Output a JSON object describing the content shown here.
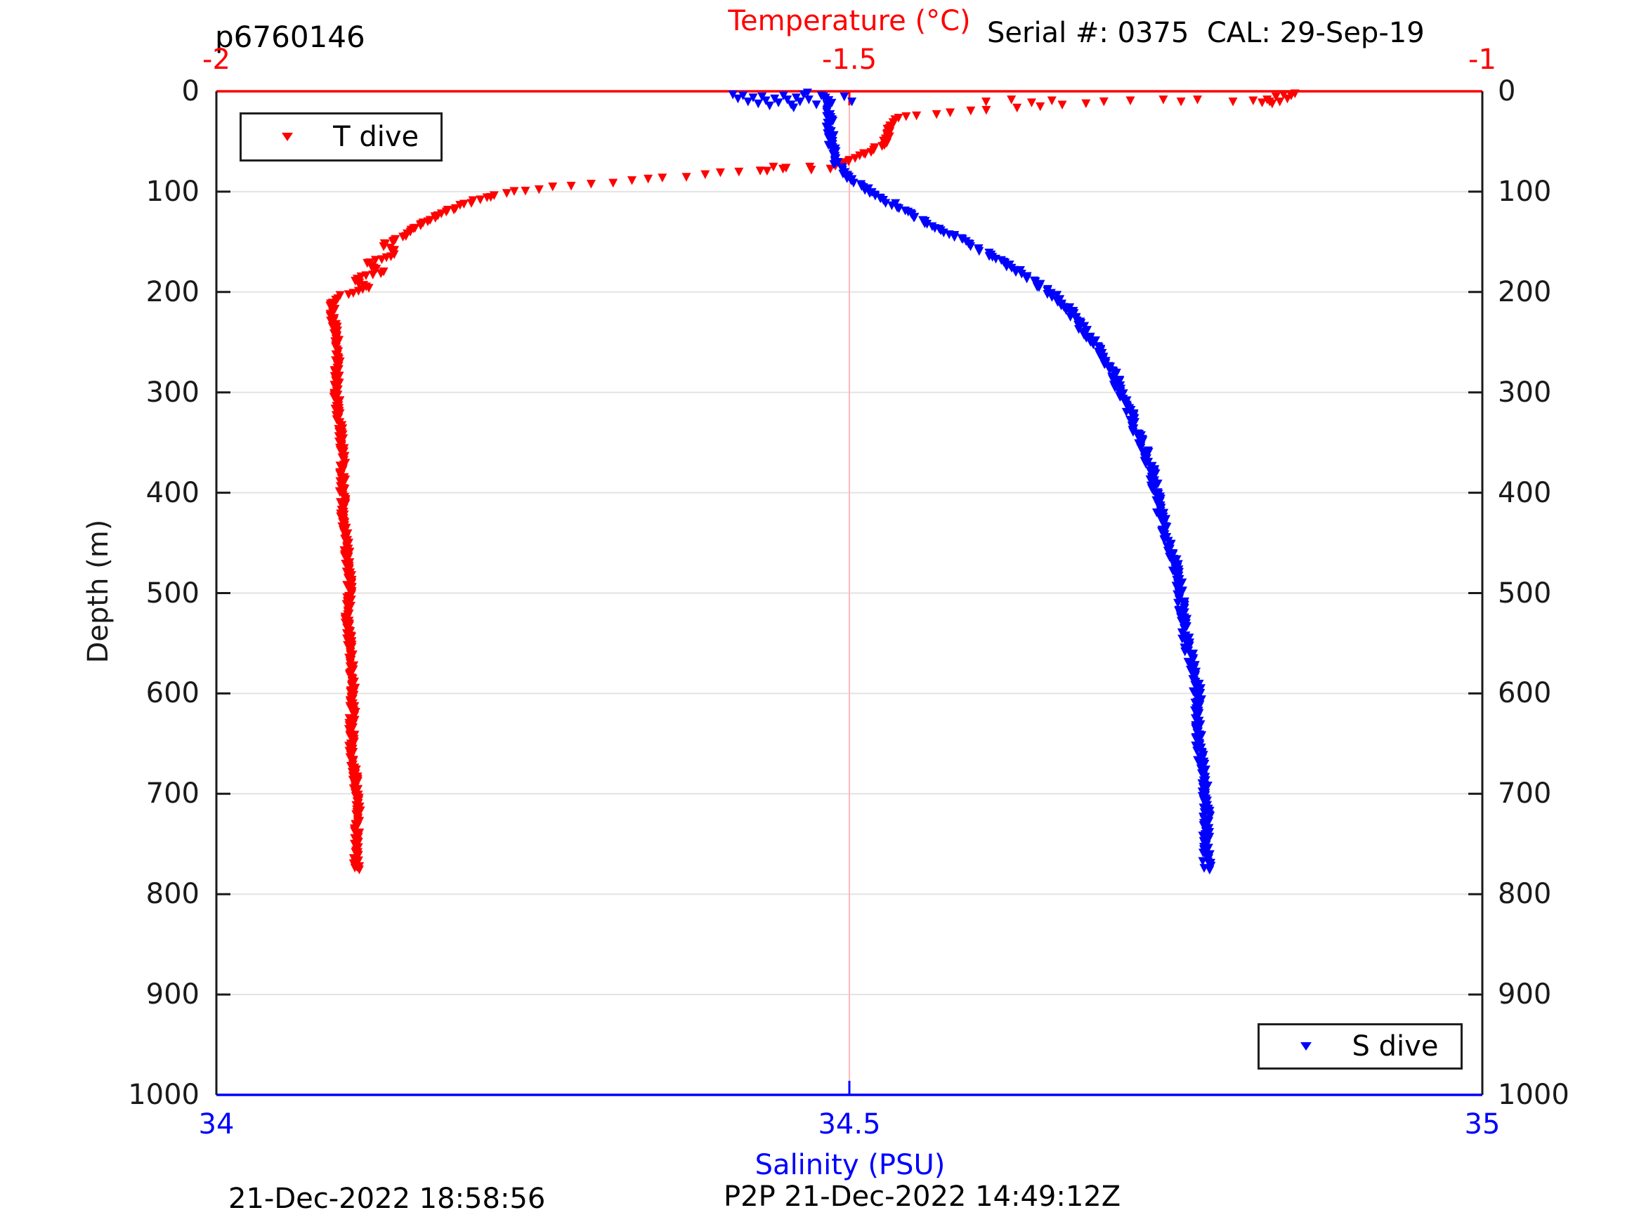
{
  "header": {
    "title": "p6760146",
    "serial": "Serial #: 0375  CAL: 29-Sep-19"
  },
  "footer": {
    "left": "21-Dec-2022 18:58:56",
    "center": "P2P 21-Dec-2022 14:49:12Z"
  },
  "chart_data": {
    "type": "scatter",
    "title": "p6760146",
    "grid": "on",
    "colors": {
      "temperature": "#ff0000",
      "salinity": "#0000ff",
      "grid_h": "#e3e3e3",
      "grid_v": "#ffb9b9",
      "spine_lr": "#1a1a1a"
    },
    "axes": {
      "temperature": {
        "label": "Temperature (°C)",
        "position": "top",
        "min": -2,
        "max": -1,
        "ticks": [
          -2,
          -1.5,
          -1
        ],
        "tick_labels": [
          "-2",
          "-1.5",
          "-1"
        ],
        "color": "#ff0000"
      },
      "salinity": {
        "label": "Salinity (PSU)",
        "position": "bottom",
        "min": 34,
        "max": 35,
        "ticks": [
          34,
          34.5,
          35
        ],
        "tick_labels": [
          "34",
          "34.5",
          "35"
        ],
        "color": "#0000ff"
      },
      "depth": {
        "label": "Depth (m)",
        "position": "left-right",
        "min": 0,
        "max": 1000,
        "ticks": [
          0,
          100,
          200,
          300,
          400,
          500,
          600,
          700,
          800,
          900,
          1000
        ],
        "tick_labels": [
          "0",
          "100",
          "200",
          "300",
          "400",
          "500",
          "600",
          "700",
          "800",
          "900",
          "1000"
        ],
        "color": "#1a1a1a"
      }
    },
    "legend": [
      {
        "label": "T dive",
        "marker": "triangle-down",
        "color": "#ff0000",
        "position": "top-left"
      },
      {
        "label": "S dive",
        "marker": "triangle-down",
        "color": "#0000ff",
        "position": "bottom-right"
      }
    ],
    "series": [
      {
        "name": "T dive",
        "x_axis": "temperature",
        "color": "#ff0000",
        "marker": "triangle-down",
        "jitter": 0.0025,
        "anchors": [
          [
            -1.3,
            9
          ],
          [
            -1.34,
            13
          ],
          [
            -1.395,
            17
          ],
          [
            -1.43,
            21
          ],
          [
            -1.462,
            25
          ],
          [
            -1.468,
            33
          ],
          [
            -1.47,
            42
          ],
          [
            -1.472,
            50
          ],
          [
            -1.48,
            57
          ],
          [
            -1.492,
            63
          ],
          [
            -1.502,
            69
          ],
          [
            -1.51,
            73
          ],
          [
            -1.545,
            75
          ],
          [
            -1.57,
            77
          ],
          [
            -1.615,
            82
          ],
          [
            -1.655,
            86
          ],
          [
            -1.69,
            90
          ],
          [
            -1.74,
            95
          ],
          [
            -1.77,
            100
          ],
          [
            -1.785,
            104
          ],
          [
            -1.805,
            112
          ],
          [
            -1.825,
            122
          ],
          [
            -1.838,
            131
          ],
          [
            -1.852,
            142
          ],
          [
            -1.87,
            152
          ],
          [
            -1.858,
            160
          ],
          [
            -1.882,
            170
          ],
          [
            -1.868,
            178
          ],
          [
            -1.89,
            187
          ],
          [
            -1.878,
            195
          ],
          [
            -1.9,
            203
          ],
          [
            -1.908,
            212
          ],
          [
            -1.907,
            240
          ],
          [
            -1.905,
            270
          ],
          [
            -1.904,
            300
          ],
          [
            -1.902,
            340
          ],
          [
            -1.901,
            380
          ],
          [
            -1.899,
            420
          ],
          [
            -1.897,
            460
          ],
          [
            -1.896,
            500
          ],
          [
            -1.894,
            550
          ],
          [
            -1.893,
            600
          ],
          [
            -1.892,
            650
          ],
          [
            -1.89,
            700
          ],
          [
            -1.889,
            745
          ],
          [
            -1.888,
            776
          ]
        ],
        "scatter": [
          [
            -1.148,
            1
          ],
          [
            -1.151,
            3
          ],
          [
            -1.154,
            6
          ],
          [
            -1.157,
            2
          ],
          [
            -1.16,
            9
          ],
          [
            -1.163,
            4
          ],
          [
            -1.166,
            11
          ],
          [
            -1.17,
            7
          ],
          [
            -1.174,
            10
          ],
          [
            -1.181,
            8
          ],
          [
            -1.168,
            9
          ],
          [
            -1.197,
            9
          ],
          [
            -1.225,
            7
          ],
          [
            -1.238,
            9
          ],
          [
            -1.252,
            7
          ],
          [
            -1.278,
            8
          ],
          [
            -1.34,
            8
          ],
          [
            -1.356,
            10
          ],
          [
            -1.372,
            7
          ],
          [
            -1.392,
            9
          ],
          [
            -1.515,
            76
          ],
          [
            -1.53,
            77
          ],
          [
            -1.55,
            75
          ],
          [
            -1.565,
            78
          ],
          [
            -1.56,
            74
          ]
        ]
      },
      {
        "name": "S dive",
        "x_axis": "salinity",
        "color": "#0000ff",
        "marker": "triangle-down",
        "jitter": 0.0032,
        "anchors": [
          [
            34.47,
            1
          ],
          [
            34.479,
            4
          ],
          [
            34.484,
            8
          ],
          [
            34.483,
            16
          ],
          [
            34.484,
            26
          ],
          [
            34.483,
            36
          ],
          [
            34.485,
            46
          ],
          [
            34.486,
            56
          ],
          [
            34.488,
            64
          ],
          [
            34.491,
            71
          ],
          [
            34.495,
            77
          ],
          [
            34.5,
            83
          ],
          [
            34.507,
            90
          ],
          [
            34.516,
            98
          ],
          [
            34.528,
            107
          ],
          [
            34.543,
            118
          ],
          [
            34.56,
            130
          ],
          [
            34.578,
            141
          ],
          [
            34.596,
            152
          ],
          [
            34.613,
            163
          ],
          [
            34.628,
            174
          ],
          [
            34.642,
            185
          ],
          [
            34.655,
            196
          ],
          [
            34.666,
            206
          ],
          [
            34.675,
            218
          ],
          [
            34.683,
            234
          ],
          [
            34.695,
            255
          ],
          [
            34.707,
            278
          ],
          [
            34.717,
            302
          ],
          [
            34.725,
            328
          ],
          [
            34.732,
            355
          ],
          [
            34.739,
            382
          ],
          [
            34.745,
            410
          ],
          [
            34.751,
            440
          ],
          [
            34.756,
            470
          ],
          [
            34.761,
            500
          ],
          [
            34.765,
            528
          ],
          [
            34.768,
            552
          ],
          [
            34.772,
            580
          ],
          [
            34.775,
            610
          ],
          [
            34.777,
            642
          ],
          [
            34.779,
            674
          ],
          [
            34.78,
            704
          ],
          [
            34.782,
            734
          ],
          [
            34.783,
            758
          ],
          [
            34.784,
            775
          ]
        ],
        "scatter": [
          [
            34.408,
            2
          ],
          [
            34.412,
            6
          ],
          [
            34.416,
            3
          ],
          [
            34.42,
            9
          ],
          [
            34.424,
            5
          ],
          [
            34.428,
            11
          ],
          [
            34.431,
            4
          ],
          [
            34.434,
            8
          ],
          [
            34.437,
            13
          ],
          [
            34.441,
            6
          ],
          [
            34.444,
            10
          ],
          [
            34.448,
            3
          ],
          [
            34.451,
            7
          ],
          [
            34.454,
            12
          ],
          [
            34.458,
            5
          ],
          [
            34.461,
            9
          ],
          [
            34.456,
            15
          ],
          [
            34.464,
            2
          ],
          [
            34.468,
            7
          ],
          [
            34.474,
            12
          ],
          [
            34.496,
            4
          ],
          [
            34.502,
            9
          ]
        ]
      }
    ]
  }
}
